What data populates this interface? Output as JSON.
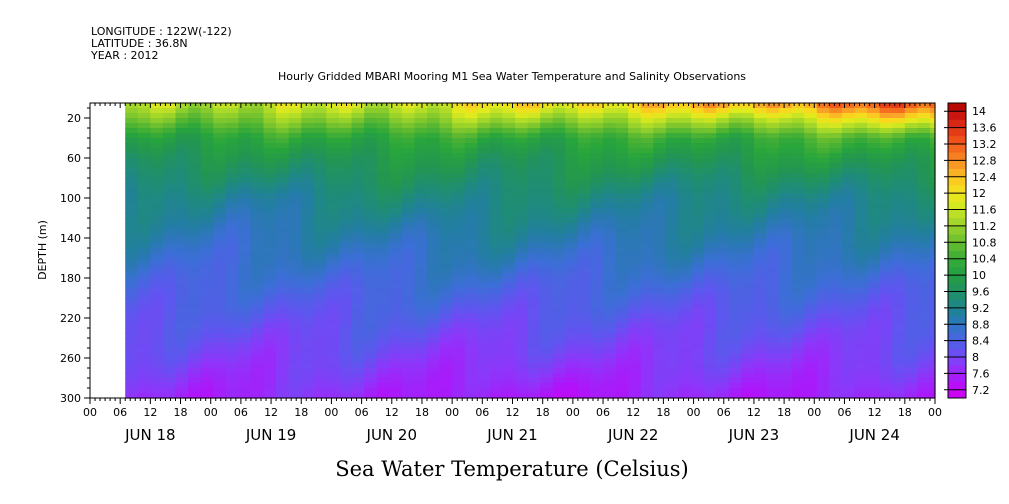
{
  "header": {
    "longitude": "LONGITUDE : 122W(-122)",
    "latitude": "LATITUDE : 36.8N",
    "year": "YEAR : 2012"
  },
  "chart_data": {
    "type": "heatmap",
    "title": "Hourly Gridded MBARI Mooring M1 Sea Water Temperature and Salinity Observations",
    "xlabel": "Sea Water Temperature (Celsius)",
    "ylabel": "DEPTH (m)",
    "y_ticks": [
      "20",
      "60",
      "100",
      "140",
      "180",
      "220",
      "260",
      "300"
    ],
    "ylim": [
      300,
      5
    ],
    "x_hour_labels": [
      "00",
      "06",
      "12",
      "18",
      "00",
      "06",
      "12",
      "18",
      "00",
      "06",
      "12",
      "18",
      "00",
      "06",
      "12",
      "18",
      "00",
      "06",
      "12",
      "18",
      "00",
      "06",
      "12",
      "18",
      "00",
      "06",
      "12",
      "18",
      "00"
    ],
    "x_day_labels": [
      "JUN 18",
      "JUN 19",
      "JUN 20",
      "JUN 21",
      "JUN 22",
      "JUN 23",
      "JUN 24"
    ],
    "data_start_hour": 7,
    "colorbar_labels": [
      "14",
      "13.6",
      "13.2",
      "12.8",
      "12.4",
      "12",
      "11.6",
      "11.2",
      "10.8",
      "10.4",
      "10",
      "9.6",
      "9.2",
      "8.8",
      "8.4",
      "8",
      "7.6",
      "7.2"
    ],
    "colorbar_range": [
      7.0,
      14.2
    ],
    "grid": false,
    "approx_profiles": {
      "hours": [
        7,
        30,
        54,
        78,
        102,
        126,
        150,
        174
      ],
      "depth": [
        5,
        20,
        40,
        60,
        80,
        100,
        140,
        180,
        220,
        260,
        300
      ],
      "temperature": [
        [
          11.5,
          11.0,
          10.2,
          9.8,
          9.5,
          9.2,
          8.9,
          8.6,
          8.3,
          8.0,
          7.7
        ],
        [
          11.6,
          11.0,
          10.1,
          9.7,
          9.4,
          9.1,
          8.8,
          8.5,
          8.2,
          7.9,
          7.6
        ],
        [
          11.7,
          11.1,
          10.3,
          9.9,
          9.6,
          9.3,
          8.9,
          8.6,
          8.3,
          8.0,
          7.7
        ],
        [
          12.0,
          11.3,
          10.2,
          9.8,
          9.6,
          9.4,
          9.0,
          8.6,
          8.2,
          7.8,
          7.4
        ],
        [
          12.3,
          11.4,
          10.3,
          9.9,
          9.6,
          9.3,
          8.9,
          8.5,
          8.2,
          7.9,
          7.5
        ],
        [
          12.6,
          11.5,
          10.3,
          9.9,
          9.5,
          9.2,
          8.9,
          8.6,
          8.2,
          7.9,
          7.6
        ],
        [
          13.1,
          11.9,
          10.5,
          10.0,
          9.6,
          9.3,
          8.9,
          8.5,
          8.2,
          7.9,
          7.5
        ],
        [
          13.6,
          12.5,
          10.6,
          10.0,
          9.7,
          9.3,
          8.9,
          8.6,
          8.3,
          8.0,
          7.7
        ]
      ]
    }
  }
}
